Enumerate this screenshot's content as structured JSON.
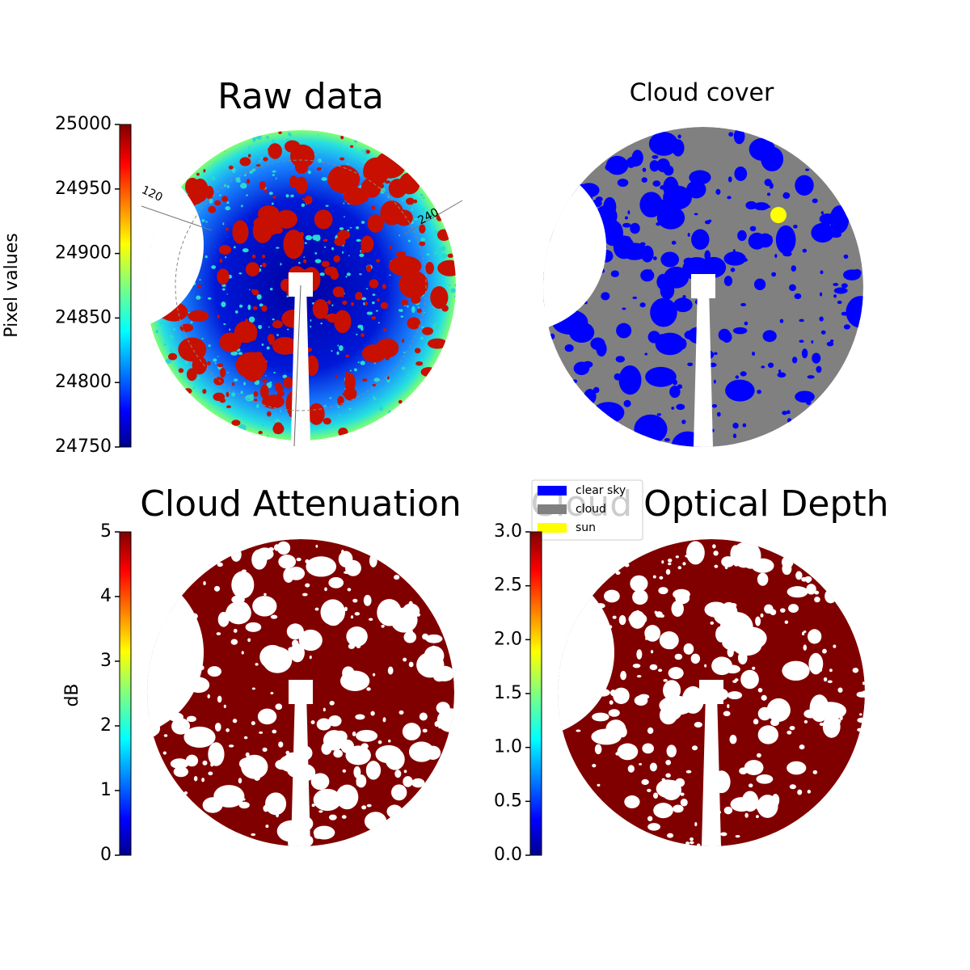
{
  "chart_data": [
    {
      "type": "image",
      "title": "Raw data",
      "colorbar_label": "Pixel values",
      "colormap": "jet",
      "clim": [
        24750,
        25000
      ],
      "cticks": [
        24750,
        24800,
        24850,
        24900,
        24950,
        25000
      ],
      "annotations": [
        "120",
        "240"
      ]
    },
    {
      "type": "image",
      "title": "Cloud cover",
      "series": [
        {
          "name": "clear sky",
          "color": "#0000ff"
        },
        {
          "name": "cloud",
          "color": "#808080"
        },
        {
          "name": "sun",
          "color": "#ffff00"
        }
      ]
    },
    {
      "type": "image",
      "title": "Cloud Attenuation",
      "colorbar_label": "dB",
      "colormap": "jet",
      "clim": [
        0,
        5
      ],
      "cticks": [
        0,
        1,
        2,
        3,
        4,
        5
      ]
    },
    {
      "type": "image",
      "title": "Cloud Optical Depth",
      "colormap": "jet",
      "clim": [
        0,
        3
      ],
      "cticks": [
        {
          "value": 0,
          "label": "0.0"
        },
        {
          "value": 0.5,
          "label": "0.5"
        },
        {
          "value": 1,
          "label": "1.0"
        },
        {
          "value": 1.5,
          "label": "1.5"
        },
        {
          "value": 2,
          "label": "2.0"
        },
        {
          "value": 2.5,
          "label": "2.5"
        },
        {
          "value": 3,
          "label": "3.0"
        }
      ]
    }
  ]
}
